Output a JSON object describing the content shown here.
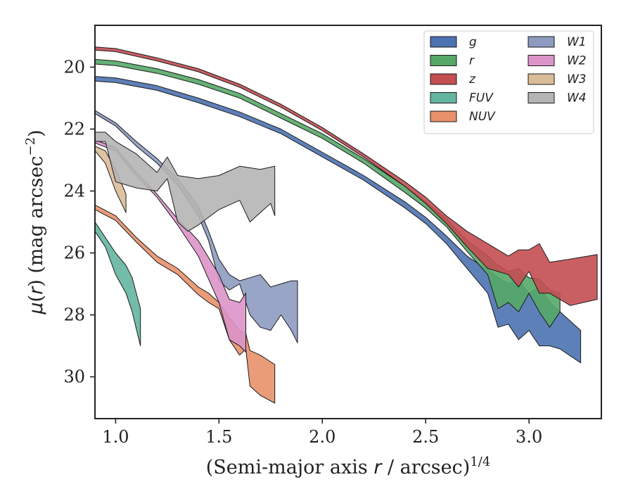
{
  "chart_data": {
    "type": "area",
    "xlabel_parts": {
      "main": "(Semi-major axis ",
      "var": "r",
      "rest": " / arcsec)",
      "sup": "1/4"
    },
    "ylabel_parts": {
      "mu": "μ",
      "open": "(",
      "var": "r",
      "close": ") (mag arcsec",
      "sup": "−2",
      "end": ")"
    },
    "xlim": [
      0.9,
      3.35
    ],
    "ylim": [
      31.35,
      18.65
    ],
    "y_inverted": true,
    "xticks": [
      1.0,
      1.5,
      2.0,
      2.5,
      3.0
    ],
    "xtick_labels": [
      "1.0",
      "1.5",
      "2.0",
      "2.5",
      "3.0"
    ],
    "yticks": [
      20,
      22,
      24,
      26,
      28,
      30
    ],
    "ytick_labels": [
      "20",
      "22",
      "24",
      "26",
      "28",
      "30"
    ],
    "grid": false,
    "legend": {
      "position": "top-right",
      "columns": 2
    },
    "series": [
      {
        "name": "g",
        "color": "#4c72b0",
        "upper": [
          [
            0.9,
            20.3
          ],
          [
            1.0,
            20.35
          ],
          [
            1.2,
            20.6
          ],
          [
            1.4,
            21.0
          ],
          [
            1.6,
            21.45
          ],
          [
            1.8,
            22.0
          ],
          [
            2.0,
            22.75
          ],
          [
            2.2,
            23.5
          ],
          [
            2.4,
            24.35
          ],
          [
            2.5,
            24.85
          ],
          [
            2.6,
            25.45
          ],
          [
            2.7,
            26.1
          ],
          [
            2.8,
            26.55
          ],
          [
            2.85,
            26.8
          ],
          [
            2.9,
            27.0
          ],
          [
            2.95,
            26.9
          ],
          [
            3.0,
            27.3
          ],
          [
            3.05,
            27.1
          ],
          [
            3.1,
            27.6
          ],
          [
            3.15,
            27.9
          ],
          [
            3.25,
            28.5
          ]
        ],
        "lower": [
          [
            0.9,
            20.45
          ],
          [
            1.0,
            20.5
          ],
          [
            1.2,
            20.75
          ],
          [
            1.4,
            21.15
          ],
          [
            1.6,
            21.6
          ],
          [
            1.8,
            22.15
          ],
          [
            2.0,
            22.9
          ],
          [
            2.2,
            23.65
          ],
          [
            2.4,
            24.55
          ],
          [
            2.5,
            25.05
          ],
          [
            2.6,
            25.7
          ],
          [
            2.7,
            26.5
          ],
          [
            2.8,
            27.3
          ],
          [
            2.85,
            28.4
          ],
          [
            2.9,
            28.3
          ],
          [
            2.95,
            28.8
          ],
          [
            3.0,
            28.5
          ],
          [
            3.05,
            29.0
          ],
          [
            3.1,
            29.0
          ],
          [
            3.15,
            29.1
          ],
          [
            3.25,
            29.55
          ]
        ]
      },
      {
        "name": "r",
        "color": "#55a868",
        "upper": [
          [
            0.9,
            19.75
          ],
          [
            1.0,
            19.8
          ],
          [
            1.2,
            20.05
          ],
          [
            1.4,
            20.4
          ],
          [
            1.6,
            20.85
          ],
          [
            1.8,
            21.5
          ],
          [
            2.0,
            22.15
          ],
          [
            2.2,
            22.95
          ],
          [
            2.4,
            23.85
          ],
          [
            2.5,
            24.35
          ],
          [
            2.6,
            24.9
          ],
          [
            2.7,
            25.6
          ],
          [
            2.8,
            26.1
          ],
          [
            2.85,
            26.4
          ],
          [
            2.9,
            26.6
          ],
          [
            2.95,
            26.5
          ],
          [
            3.0,
            26.8
          ],
          [
            3.05,
            26.85
          ],
          [
            3.1,
            27.2
          ],
          [
            3.15,
            27.3
          ]
        ],
        "lower": [
          [
            0.9,
            19.9
          ],
          [
            1.0,
            19.95
          ],
          [
            1.2,
            20.2
          ],
          [
            1.4,
            20.55
          ],
          [
            1.6,
            21.0
          ],
          [
            1.8,
            21.65
          ],
          [
            2.0,
            22.3
          ],
          [
            2.2,
            23.1
          ],
          [
            2.4,
            24.05
          ],
          [
            2.5,
            24.55
          ],
          [
            2.6,
            25.15
          ],
          [
            2.7,
            25.95
          ],
          [
            2.8,
            26.7
          ],
          [
            2.85,
            27.8
          ],
          [
            2.9,
            27.6
          ],
          [
            2.95,
            27.9
          ],
          [
            3.0,
            27.3
          ],
          [
            3.05,
            27.9
          ],
          [
            3.1,
            28.4
          ],
          [
            3.15,
            27.9
          ]
        ]
      },
      {
        "name": "z",
        "color": "#c44e52",
        "upper": [
          [
            0.9,
            19.35
          ],
          [
            1.0,
            19.4
          ],
          [
            1.2,
            19.7
          ],
          [
            1.4,
            20.05
          ],
          [
            1.6,
            20.55
          ],
          [
            1.8,
            21.2
          ],
          [
            2.0,
            21.95
          ],
          [
            2.2,
            22.8
          ],
          [
            2.4,
            23.7
          ],
          [
            2.5,
            24.2
          ],
          [
            2.6,
            24.8
          ],
          [
            2.7,
            25.3
          ],
          [
            2.8,
            25.7
          ],
          [
            2.9,
            26.1
          ],
          [
            2.95,
            25.9
          ],
          [
            3.0,
            25.9
          ],
          [
            3.05,
            25.7
          ],
          [
            3.1,
            26.3
          ],
          [
            3.2,
            26.2
          ],
          [
            3.33,
            26.05
          ]
        ],
        "lower": [
          [
            0.9,
            19.45
          ],
          [
            1.0,
            19.5
          ],
          [
            1.2,
            19.8
          ],
          [
            1.4,
            20.15
          ],
          [
            1.6,
            20.65
          ],
          [
            1.8,
            21.3
          ],
          [
            2.0,
            22.05
          ],
          [
            2.2,
            22.9
          ],
          [
            2.4,
            23.85
          ],
          [
            2.5,
            24.4
          ],
          [
            2.6,
            25.05
          ],
          [
            2.7,
            25.8
          ],
          [
            2.8,
            26.5
          ],
          [
            2.9,
            26.7
          ],
          [
            2.95,
            27.1
          ],
          [
            3.0,
            26.6
          ],
          [
            3.05,
            27.3
          ],
          [
            3.1,
            27.3
          ],
          [
            3.2,
            27.7
          ],
          [
            3.33,
            27.5
          ]
        ]
      },
      {
        "name": "FUV",
        "color": "#64b5a0",
        "upper": [
          [
            0.9,
            25.0
          ],
          [
            0.95,
            25.5
          ],
          [
            1.0,
            26.0
          ],
          [
            1.05,
            26.4
          ],
          [
            1.08,
            26.8
          ],
          [
            1.12,
            27.8
          ]
        ],
        "lower": [
          [
            0.9,
            25.3
          ],
          [
            0.95,
            25.8
          ],
          [
            1.0,
            26.7
          ],
          [
            1.05,
            27.3
          ],
          [
            1.08,
            27.9
          ],
          [
            1.12,
            29.0
          ]
        ]
      },
      {
        "name": "NUV",
        "color": "#e8916a",
        "upper": [
          [
            0.9,
            24.45
          ],
          [
            1.0,
            24.8
          ],
          [
            1.1,
            25.5
          ],
          [
            1.2,
            26.1
          ],
          [
            1.3,
            26.5
          ],
          [
            1.4,
            27.1
          ],
          [
            1.45,
            27.3
          ],
          [
            1.5,
            27.6
          ],
          [
            1.55,
            28.1
          ],
          [
            1.6,
            28.5
          ],
          [
            1.63,
            28.6
          ],
          [
            1.65,
            29.15
          ],
          [
            1.7,
            29.3
          ],
          [
            1.77,
            29.6
          ]
        ],
        "lower": [
          [
            0.9,
            24.6
          ],
          [
            1.0,
            24.95
          ],
          [
            1.1,
            25.65
          ],
          [
            1.2,
            26.3
          ],
          [
            1.3,
            26.7
          ],
          [
            1.4,
            27.35
          ],
          [
            1.45,
            27.6
          ],
          [
            1.5,
            27.8
          ],
          [
            1.55,
            28.8
          ],
          [
            1.6,
            29.3
          ],
          [
            1.63,
            29.1
          ],
          [
            1.65,
            30.3
          ],
          [
            1.7,
            30.6
          ],
          [
            1.77,
            30.85
          ]
        ]
      },
      {
        "name": "W1",
        "color": "#8d9bc1",
        "upper": [
          [
            0.9,
            21.4
          ],
          [
            1.0,
            21.8
          ],
          [
            1.1,
            22.4
          ],
          [
            1.2,
            22.95
          ],
          [
            1.3,
            23.6
          ],
          [
            1.4,
            24.5
          ],
          [
            1.45,
            25.3
          ],
          [
            1.5,
            26.2
          ],
          [
            1.55,
            26.7
          ],
          [
            1.6,
            26.9
          ],
          [
            1.65,
            26.8
          ],
          [
            1.7,
            26.7
          ],
          [
            1.75,
            27.1
          ],
          [
            1.8,
            27.0
          ],
          [
            1.85,
            26.9
          ],
          [
            1.88,
            26.9
          ]
        ],
        "lower": [
          [
            0.9,
            21.5
          ],
          [
            1.0,
            21.9
          ],
          [
            1.1,
            22.55
          ],
          [
            1.2,
            23.1
          ],
          [
            1.3,
            23.8
          ],
          [
            1.4,
            24.8
          ],
          [
            1.45,
            25.6
          ],
          [
            1.5,
            26.9
          ],
          [
            1.55,
            27.2
          ],
          [
            1.6,
            27.0
          ],
          [
            1.65,
            28.0
          ],
          [
            1.7,
            28.4
          ],
          [
            1.75,
            28.5
          ],
          [
            1.8,
            28.0
          ],
          [
            1.85,
            28.5
          ],
          [
            1.88,
            28.9
          ]
        ]
      },
      {
        "name": "W2",
        "color": "#dc94c8",
        "upper": [
          [
            0.9,
            22.35
          ],
          [
            1.0,
            22.6
          ],
          [
            1.1,
            23.4
          ],
          [
            1.2,
            24.1
          ],
          [
            1.3,
            24.9
          ],
          [
            1.4,
            25.6
          ],
          [
            1.5,
            26.7
          ],
          [
            1.55,
            27.5
          ],
          [
            1.6,
            27.6
          ],
          [
            1.63,
            27.3
          ]
        ],
        "lower": [
          [
            0.9,
            22.45
          ],
          [
            1.0,
            22.7
          ],
          [
            1.1,
            23.5
          ],
          [
            1.2,
            24.2
          ],
          [
            1.3,
            25.1
          ],
          [
            1.4,
            26.1
          ],
          [
            1.5,
            27.6
          ],
          [
            1.55,
            28.8
          ],
          [
            1.6,
            29.0
          ],
          [
            1.63,
            29.2
          ]
        ]
      },
      {
        "name": "W3",
        "color": "#dbbc98",
        "upper": [
          [
            0.9,
            22.55
          ],
          [
            0.95,
            22.7
          ],
          [
            1.0,
            23.3
          ],
          [
            1.05,
            24.1
          ]
        ],
        "lower": [
          [
            0.9,
            22.7
          ],
          [
            0.95,
            23.1
          ],
          [
            1.0,
            24.0
          ],
          [
            1.05,
            24.7
          ]
        ]
      },
      {
        "name": "W4",
        "color": "#b5b5b5",
        "upper": [
          [
            0.9,
            22.1
          ],
          [
            0.95,
            22.1
          ],
          [
            1.0,
            22.4
          ],
          [
            1.1,
            22.8
          ],
          [
            1.2,
            23.4
          ],
          [
            1.25,
            22.9
          ],
          [
            1.3,
            23.5
          ],
          [
            1.4,
            23.6
          ],
          [
            1.5,
            23.5
          ],
          [
            1.6,
            23.2
          ],
          [
            1.7,
            23.3
          ],
          [
            1.77,
            23.2
          ]
        ],
        "lower": [
          [
            0.9,
            22.4
          ],
          [
            0.95,
            22.4
          ],
          [
            1.0,
            23.7
          ],
          [
            1.1,
            23.9
          ],
          [
            1.2,
            24.0
          ],
          [
            1.25,
            23.6
          ],
          [
            1.3,
            25.0
          ],
          [
            1.35,
            25.3
          ],
          [
            1.4,
            25.1
          ],
          [
            1.5,
            24.6
          ],
          [
            1.6,
            24.3
          ],
          [
            1.65,
            25.0
          ],
          [
            1.7,
            24.7
          ],
          [
            1.75,
            24.4
          ],
          [
            1.77,
            24.8
          ]
        ]
      }
    ]
  }
}
